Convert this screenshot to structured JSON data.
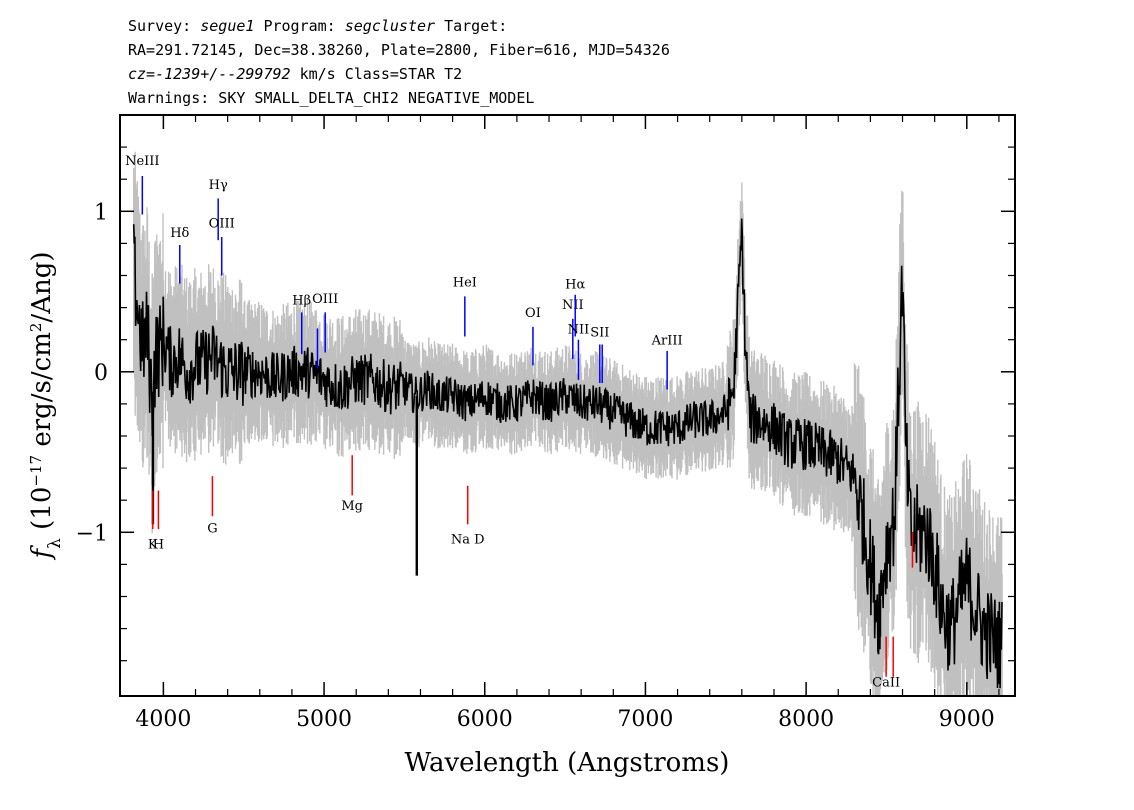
{
  "header": {
    "line1": {
      "survey_label": "Survey: ",
      "survey": "segue1",
      "program_label": " Program: ",
      "program": "segcluster",
      "target_label": " Target:"
    },
    "line2": "RA=291.72145, Dec=38.38260, Plate=2800, Fiber=616, MJD=54326",
    "line3": {
      "cz_label": "cz=",
      "cz_value": "-1239+/--299792",
      "rest": " km/s Class=STAR T2"
    },
    "line4": "Warnings: SKY SMALL_DELTA_CHI2 NEGATIVE_MODEL"
  },
  "chart_data": {
    "type": "line",
    "title": "",
    "xlabel": "Wavelength (Angstroms)",
    "ylabel": "f_λ (10^-17 erg/s/cm²/Ang)",
    "ylabel_parts": {
      "f": "f",
      "sub": "λ",
      "pre": " (10",
      "exp": "−17",
      "mid": " erg/s/cm",
      "exp2": "2",
      "post": "/Ang)"
    },
    "xlim": [
      3730,
      9300
    ],
    "ylim": [
      -2.02,
      1.6
    ],
    "xticks": [
      4000,
      5000,
      6000,
      7000,
      8000,
      9000
    ],
    "xtick_labels": [
      "4000",
      "5000",
      "6000",
      "7000",
      "8000",
      "9000"
    ],
    "yticks": [
      -1,
      0,
      1
    ],
    "ytick_labels": [
      "−1",
      "0",
      "1"
    ],
    "colors": {
      "spectrum": "#000000",
      "noise": "#c0c0c0",
      "emission": "#0000ff",
      "absorption": "#ff0000"
    },
    "series": [
      {
        "name": "flux",
        "color": "#000000",
        "points": [
          [
            3810,
            0.68
          ],
          [
            3830,
            0.5
          ],
          [
            3850,
            0.3
          ],
          [
            3870,
            0.15
          ],
          [
            3900,
            0.25
          ],
          [
            3930,
            -0.2
          ],
          [
            3950,
            0.1
          ],
          [
            3980,
            0.15
          ],
          [
            4000,
            0.2
          ],
          [
            4050,
            0.05
          ],
          [
            4100,
            0.1
          ],
          [
            4150,
            0.0
          ],
          [
            4200,
            0.05
          ],
          [
            4250,
            0.05
          ],
          [
            4300,
            0.1
          ],
          [
            4350,
            0.05
          ],
          [
            4400,
            0.0
          ],
          [
            4500,
            0.0
          ],
          [
            4600,
            0.0
          ],
          [
            4700,
            -0.05
          ],
          [
            4800,
            0.0
          ],
          [
            4900,
            0.0
          ],
          [
            5000,
            -0.05
          ],
          [
            5100,
            -0.1
          ],
          [
            5200,
            -0.05
          ],
          [
            5300,
            -0.05
          ],
          [
            5400,
            -0.1
          ],
          [
            5500,
            -0.1
          ],
          [
            5577,
            -0.15
          ],
          [
            5650,
            -0.1
          ],
          [
            5700,
            -0.15
          ],
          [
            5800,
            -0.15
          ],
          [
            5900,
            -0.2
          ],
          [
            6000,
            -0.15
          ],
          [
            6100,
            -0.2
          ],
          [
            6200,
            -0.2
          ],
          [
            6300,
            -0.15
          ],
          [
            6400,
            -0.2
          ],
          [
            6500,
            -0.15
          ],
          [
            6600,
            -0.2
          ],
          [
            6700,
            -0.2
          ],
          [
            6800,
            -0.25
          ],
          [
            6900,
            -0.3
          ],
          [
            7000,
            -0.35
          ],
          [
            7100,
            -0.35
          ],
          [
            7200,
            -0.35
          ],
          [
            7300,
            -0.3
          ],
          [
            7400,
            -0.3
          ],
          [
            7500,
            -0.25
          ],
          [
            7550,
            -0.1
          ],
          [
            7580,
            0.5
          ],
          [
            7600,
            0.88
          ],
          [
            7620,
            0.2
          ],
          [
            7650,
            -0.3
          ],
          [
            7700,
            -0.3
          ],
          [
            7800,
            -0.35
          ],
          [
            7900,
            -0.45
          ],
          [
            8000,
            -0.45
          ],
          [
            8100,
            -0.5
          ],
          [
            8200,
            -0.55
          ],
          [
            8300,
            -0.65
          ],
          [
            8350,
            -0.9
          ],
          [
            8400,
            -1.2
          ],
          [
            8450,
            -1.5
          ],
          [
            8500,
            -1.1
          ],
          [
            8550,
            -0.9
          ],
          [
            8600,
            0.62
          ],
          [
            8620,
            -0.5
          ],
          [
            8650,
            -1.0
          ],
          [
            8700,
            -1.0
          ],
          [
            8750,
            -1.0
          ],
          [
            8800,
            -1.2
          ],
          [
            8850,
            -1.5
          ],
          [
            8900,
            -1.6
          ],
          [
            9000,
            -1.3
          ],
          [
            9100,
            -1.6
          ],
          [
            9200,
            -1.7
          ]
        ],
        "spikes": [
          {
            "x": 5577,
            "y": -1.27
          },
          {
            "x": 3935,
            "y": -0.95
          },
          {
            "x": 8460,
            "y": -1.65
          }
        ]
      }
    ],
    "emission_lines": [
      {
        "label": "NeIII",
        "x": 3869,
        "y1": 1.22,
        "y2": 0.98,
        "label_y": 1.29
      },
      {
        "label": "Hδ",
        "x": 4102,
        "y1": 0.79,
        "y2": 0.55,
        "label_y": 0.84
      },
      {
        "label": "Hγ",
        "x": 4341,
        "y1": 1.08,
        "y2": 0.82,
        "label_y": 1.14
      },
      {
        "label": "OIII",
        "x": 4363,
        "y1": 0.84,
        "y2": 0.6,
        "label_y": 0.9
      },
      {
        "label": "Hβ",
        "x": 4861,
        "y1": 0.37,
        "y2": 0.11,
        "label_y": 0.42
      },
      {
        "label": "",
        "x": 4959,
        "y1": 0.27,
        "y2": 0.02,
        "label_y": 0
      },
      {
        "label": "OIII",
        "x": 5007,
        "y1": 0.37,
        "y2": 0.12,
        "label_y": 0.43
      },
      {
        "label": "HeI",
        "x": 5876,
        "y1": 0.47,
        "y2": 0.22,
        "label_y": 0.53
      },
      {
        "label": "OI",
        "x": 6300,
        "y1": 0.28,
        "y2": 0.04,
        "label_y": 0.34
      },
      {
        "label": "NII",
        "x": 6548,
        "y1": 0.33,
        "y2": 0.08,
        "label_y": 0.39
      },
      {
        "label": "Hα",
        "x": 6563,
        "y1": 0.48,
        "y2": 0.22,
        "label_y": 0.52
      },
      {
        "label": "NII",
        "x": 6583,
        "y1": 0.2,
        "y2": -0.05,
        "label_y": 0.24
      },
      {
        "label": "SII",
        "x": 6716,
        "y1": 0.17,
        "y2": -0.07,
        "label_y": 0.22
      },
      {
        "label": "",
        "x": 6731,
        "y1": 0.17,
        "y2": -0.07,
        "label_y": 0
      },
      {
        "label": "ArIII",
        "x": 7135,
        "y1": 0.13,
        "y2": -0.11,
        "label_y": 0.17
      }
    ],
    "absorption_lines": [
      {
        "label": "K",
        "x": 3934,
        "y1": -0.74,
        "y2": -0.98,
        "label_y": -1.1
      },
      {
        "label": "H",
        "x": 3969,
        "y1": -0.74,
        "y2": -0.98,
        "label_y": -1.1
      },
      {
        "label": "G",
        "x": 4305,
        "y1": -0.65,
        "y2": -0.9,
        "label_y": -1.0
      },
      {
        "label": "Mg",
        "x": 5175,
        "y1": -0.52,
        "y2": -0.77,
        "label_y": -0.86
      },
      {
        "label": "Na D",
        "x": 5894,
        "y1": -0.71,
        "y2": -0.95,
        "label_y": -1.07
      },
      {
        "label": "CaII",
        "x": 8498,
        "y1": -1.65,
        "y2": -1.9,
        "label_y": -1.96
      },
      {
        "label": "",
        "x": 8542,
        "y1": -1.65,
        "y2": -1.9,
        "label_y": 0
      },
      {
        "label": "",
        "x": 8662,
        "y1": -1.0,
        "y2": -1.22,
        "label_y": 0
      }
    ]
  }
}
